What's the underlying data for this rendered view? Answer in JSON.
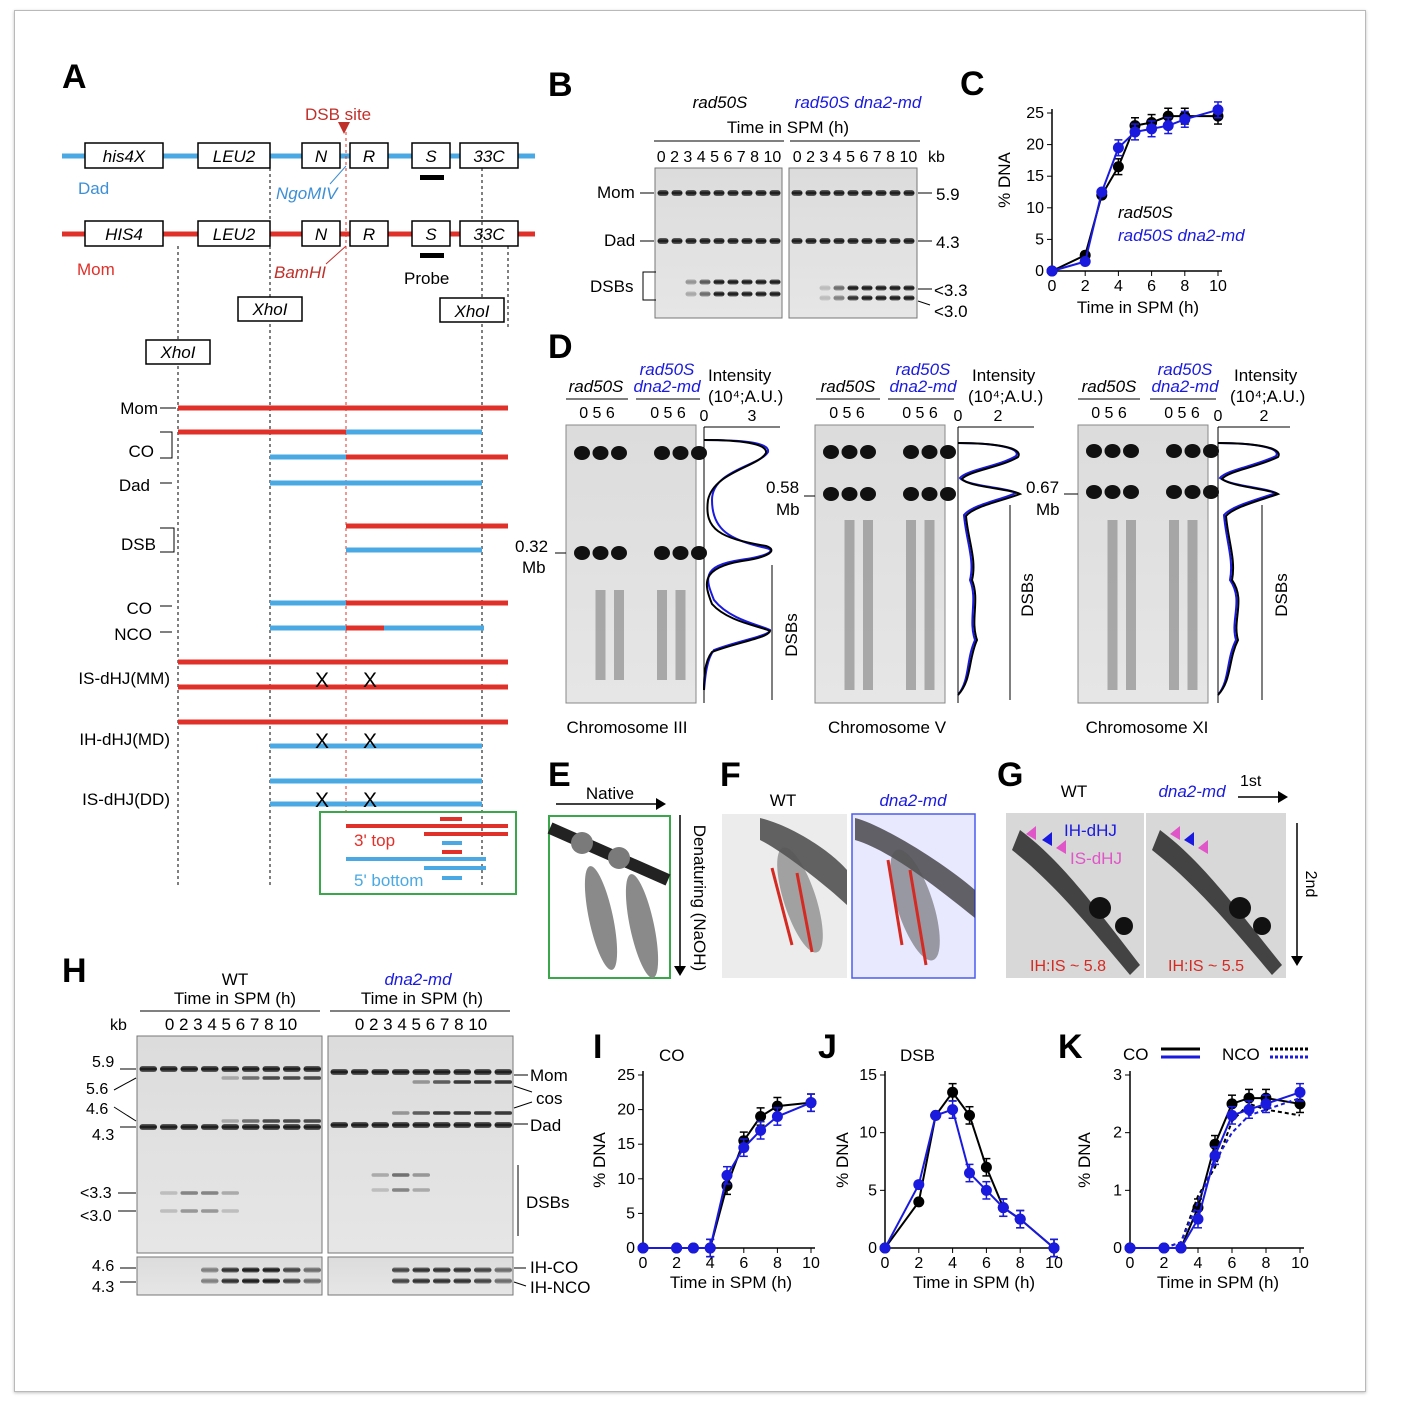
{
  "panels": {
    "A": "A",
    "B": "B",
    "C": "C",
    "D": "D",
    "E": "E",
    "F": "F",
    "G": "G",
    "H": "H",
    "I": "I",
    "J": "J",
    "K": "K"
  },
  "panelA": {
    "dsb_site": "DSB site",
    "dad_boxes": [
      "his4X",
      "LEU2",
      "N",
      "R",
      "S",
      "33C"
    ],
    "mom_boxes": [
      "HIS4",
      "LEU2",
      "N",
      "R",
      "S",
      "33C"
    ],
    "dad_label": "Dad",
    "mom_label": "Mom",
    "ngomiv": "NgoMIV",
    "bamhi": "BamHI",
    "probe": "Probe",
    "xhoi": "XhoI",
    "rows": [
      "Mom",
      "CO",
      "Dad",
      "DSB",
      "CO",
      "NCO",
      "IS-dHJ(MM)",
      "IH-dHJ(MD)",
      "IS-dHJ(DD)"
    ],
    "x_mark": "X",
    "top3": "3' top",
    "bottom5": "5' bottom"
  },
  "panelB": {
    "genotype1": "rad50S",
    "genotype2": "rad50S  dna2-md",
    "axis_title": "Time in SPM (h)",
    "lanes": "0 2 3 4 5 6 7 8 10",
    "kb": "kb",
    "bands_left": [
      "Mom",
      "Dad",
      "DSBs"
    ],
    "sizes_right": [
      "5.9",
      "4.3",
      "<3.3",
      "<3.0"
    ]
  },
  "panelC": {
    "ylabel": "% DNA",
    "xlabel": "Time in SPM (h)",
    "legend1": "rad50S",
    "legend2": "rad50S  dna2-md"
  },
  "panelD": {
    "g1": "rad50S",
    "g2a": "rad50S",
    "g2b": "dna2-md",
    "lanes": "0   5   6",
    "intensity": "Intensity",
    "units": "(10⁴;A.U.)",
    "chromosomes": [
      "Chromosome  III",
      "Chromosome  V",
      "Chromosome  XI"
    ],
    "sizes": [
      "0.32",
      "0.58",
      "0.67"
    ],
    "mb": "Mb",
    "dsbs": "DSBs",
    "int_ticks": [
      [
        "0",
        "3"
      ],
      [
        "0",
        "2"
      ],
      [
        "0",
        "2"
      ]
    ]
  },
  "panelE": {
    "native": "Native",
    "denaturing": "Denaturing (NaOH)"
  },
  "panelF": {
    "wt": "WT",
    "mut": "dna2-md"
  },
  "panelG": {
    "wt": "WT",
    "mut": "dna2-md",
    "first": "1st",
    "second": "2nd",
    "ih": "IH-dHJ",
    "is": "IS-dHJ",
    "ratio1": "IH:IS ~ 5.8",
    "ratio2": "IH:IS ~ 5.5"
  },
  "panelH": {
    "wt": "WT",
    "mut": "dna2-md",
    "axis_title": "Time in SPM (h)",
    "lanes": "0 2 3 4 5 6 7 8 10",
    "kb": "kb",
    "sizes_left": [
      "5.9",
      "5.6",
      "4.6",
      "4.3",
      "<3.3",
      "<3.0",
      "4.6",
      "4.3"
    ],
    "bands_right": [
      "Mom",
      "cos",
      "Dad",
      "DSBs",
      "IH-CO",
      "IH-NCO"
    ]
  },
  "panelI": {
    "title": "CO",
    "ylabel": "% DNA",
    "xlabel": "Time in SPM (h)"
  },
  "panelJ": {
    "title": "DSB",
    "ylabel": "% DNA",
    "xlabel": "Time in SPM (h)"
  },
  "panelK": {
    "co": "CO",
    "nco": "NCO",
    "ylabel": "% DNA",
    "xlabel": "Time in SPM (h)"
  },
  "colors": {
    "black": "#000000",
    "blue": "#1a1adf",
    "dad": "#4aa9e2",
    "mom": "#e0302a",
    "green": "#3aa84a"
  },
  "chart_data": [
    {
      "type": "line",
      "panel": "C",
      "x": [
        0,
        2,
        3,
        4,
        5,
        6,
        7,
        8,
        10
      ],
      "series": [
        {
          "name": "rad50S",
          "values": [
            0,
            2.5,
            12,
            16.5,
            23,
            23.5,
            24.5,
            24.5,
            24.5
          ]
        },
        {
          "name": "rad50S  dna2-md",
          "values": [
            0,
            1.5,
            12.5,
            19.5,
            22,
            22.5,
            23,
            24,
            25.5
          ]
        }
      ],
      "xlabel": "Time in SPM (h)",
      "ylabel": "% DNA",
      "xlim": [
        0,
        10
      ],
      "ylim": [
        0,
        25
      ],
      "xticks": [
        "0",
        "2",
        "4",
        "6",
        "8",
        "10"
      ],
      "yticks": [
        "0",
        "5",
        "10",
        "15",
        "20",
        "25"
      ]
    },
    {
      "type": "line",
      "panel": "I",
      "title": "CO",
      "x": [
        0,
        2,
        3,
        4,
        5,
        6,
        7,
        8,
        10
      ],
      "series": [
        {
          "values": [
            0,
            0,
            0,
            0,
            9,
            15.5,
            19,
            20.5,
            21
          ]
        },
        {
          "values": [
            0,
            0,
            0,
            0,
            10.5,
            14.5,
            17,
            19,
            21
          ]
        }
      ],
      "xlabel": "Time in SPM (h)",
      "ylabel": "% DNA",
      "xlim": [
        0,
        10
      ],
      "ylim": [
        0,
        25
      ],
      "xticks": [
        "0",
        "2",
        "4",
        "6",
        "8",
        "10"
      ],
      "yticks": [
        "0",
        "5",
        "10",
        "15",
        "20",
        "25"
      ]
    },
    {
      "type": "line",
      "panel": "J",
      "title": "DSB",
      "x": [
        0,
        2,
        3,
        4,
        5,
        6,
        7,
        8,
        10
      ],
      "series": [
        {
          "values": [
            0,
            4,
            11.5,
            13.5,
            11.5,
            7,
            3.5,
            2.5,
            0
          ]
        },
        {
          "values": [
            0,
            5.5,
            11.5,
            12,
            6.5,
            5,
            3.5,
            2.5,
            0
          ]
        }
      ],
      "xlabel": "Time in SPM (h)",
      "ylabel": "% DNA",
      "xlim": [
        0,
        10
      ],
      "ylim": [
        0,
        15
      ],
      "xticks": [
        "0",
        "2",
        "4",
        "6",
        "8",
        "10"
      ],
      "yticks": [
        "0",
        "5",
        "10",
        "15"
      ]
    },
    {
      "type": "line",
      "panel": "K",
      "x": [
        0,
        2,
        3,
        4,
        5,
        6,
        7,
        8,
        10
      ],
      "series": [
        {
          "name": "CO",
          "values": [
            0,
            0,
            0,
            0.7,
            1.8,
            2.5,
            2.6,
            2.6,
            2.5
          ]
        },
        {
          "name": "CO",
          "values": [
            0,
            0,
            0,
            0.5,
            1.6,
            2.3,
            2.4,
            2.5,
            2.7
          ]
        },
        {
          "name": "NCO",
          "values": [
            0,
            0,
            0.1,
            0.9,
            1.4,
            2.2,
            2.5,
            2.4,
            2.3
          ]
        },
        {
          "name": "NCO",
          "values": [
            0,
            0,
            0.1,
            0.8,
            1.5,
            2.0,
            2.3,
            2.4,
            2.6
          ]
        }
      ],
      "xlabel": "Time in SPM (h)",
      "ylabel": "% DNA",
      "xlim": [
        0,
        10
      ],
      "ylim": [
        0,
        3
      ],
      "xticks": [
        "0",
        "2",
        "4",
        "6",
        "8",
        "10"
      ],
      "yticks": [
        "0",
        "1",
        "2",
        "3"
      ]
    }
  ]
}
